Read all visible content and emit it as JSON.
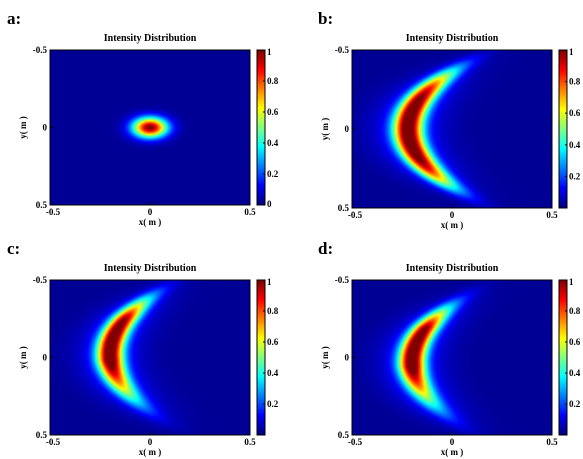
{
  "figure": {
    "panels": [
      {
        "label": "a:",
        "title": "Intensity Distribution",
        "xlabel": "x( m )",
        "ylabel": "y( m )"
      },
      {
        "label": "b:",
        "title": "Intensity Distribution",
        "xlabel": "x( m )",
        "ylabel": "y( m )"
      },
      {
        "label": "c:",
        "title": "Intensity Distribution",
        "xlabel": "x( m )",
        "ylabel": "y( m )"
      },
      {
        "label": "d:",
        "title": "Intensity Distribution",
        "xlabel": "x( m )",
        "ylabel": "y( m )"
      }
    ]
  },
  "chart_data": [
    {
      "type": "heatmap",
      "panel": "a",
      "title": "Intensity Distribution",
      "xlabel": "x( m )",
      "ylabel": "y( m )",
      "xlim": [
        -0.5,
        0.5
      ],
      "ylim": [
        -0.5,
        0.5
      ],
      "y_direction": "down",
      "xticks": [
        "-0.5",
        "0",
        "0.5"
      ],
      "yticks": [
        "-0.5",
        "0",
        "0.5"
      ],
      "colorbar": {
        "range": [
          0,
          1
        ],
        "ticks": [
          "1",
          "0.8",
          "0.6",
          "0.4",
          "0.2",
          "0"
        ],
        "colormap": "jet"
      },
      "field": {
        "shape": "gaussian",
        "center_x": 0.0,
        "center_y": 0.0,
        "sigma_x": 0.06,
        "sigma_y": 0.045,
        "peak": 1.0
      }
    },
    {
      "type": "heatmap",
      "panel": "b",
      "title": "Intensity Distribution",
      "xlabel": "x( m )",
      "ylabel": "y( m )",
      "xlim": [
        -0.5,
        0.5
      ],
      "ylim": [
        -0.5,
        0.5
      ],
      "y_direction": "down",
      "xticks": [
        "-0.5",
        "0",
        "0.5"
      ],
      "yticks": [
        "-0.5",
        "0",
        "0.5"
      ],
      "colorbar": {
        "range": [
          0,
          1
        ],
        "ticks": [
          "1",
          "0.8",
          "0.6",
          "0.4",
          "0.2"
        ],
        "colormap": "jet"
      },
      "field": {
        "shape": "crescent",
        "ridge_x": -0.22,
        "ridge_y": 0.0,
        "curvature": 1.6,
        "half_length": 0.38,
        "width": 0.05,
        "skew": 0.0,
        "peak": 1.0
      }
    },
    {
      "type": "heatmap",
      "panel": "c",
      "title": "Intensity Distribution",
      "xlabel": "x( m )",
      "ylabel": "y( m )",
      "xlim": [
        -0.5,
        0.5
      ],
      "ylim": [
        -0.5,
        0.5
      ],
      "y_direction": "down",
      "xticks": [
        "-0.5",
        "0",
        "0.5"
      ],
      "yticks": [
        "-0.5",
        "0",
        "0.5"
      ],
      "colorbar": {
        "range": [
          0,
          1
        ],
        "ticks": [
          "1",
          "0.8",
          "0.6",
          "0.4",
          "0.2"
        ],
        "colormap": "jet"
      },
      "field": {
        "shape": "crescent",
        "ridge_x": -0.2,
        "ridge_y": -0.02,
        "curvature": 1.4,
        "half_length": 0.4,
        "width": 0.045,
        "skew": 0.9,
        "peak": 1.0
      }
    },
    {
      "type": "heatmap",
      "panel": "d",
      "title": "Intensity Distribution",
      "xlabel": "x( m )",
      "ylabel": "y( m )",
      "xlim": [
        -0.5,
        0.5
      ],
      "ylim": [
        -0.5,
        0.5
      ],
      "y_direction": "down",
      "xticks": [
        "-0.5",
        "0",
        "0.5"
      ],
      "yticks": [
        "-0.5",
        "0",
        "0.5"
      ],
      "colorbar": {
        "range": [
          0,
          1
        ],
        "ticks": [
          "1",
          "0.8",
          "0.6",
          "0.4",
          "0.2"
        ],
        "colormap": "jet"
      },
      "field": {
        "shape": "crescent",
        "ridge_x": -0.2,
        "ridge_y": 0.03,
        "curvature": 1.4,
        "half_length": 0.4,
        "width": 0.045,
        "skew": 1.1,
        "peak": 1.0
      }
    }
  ]
}
